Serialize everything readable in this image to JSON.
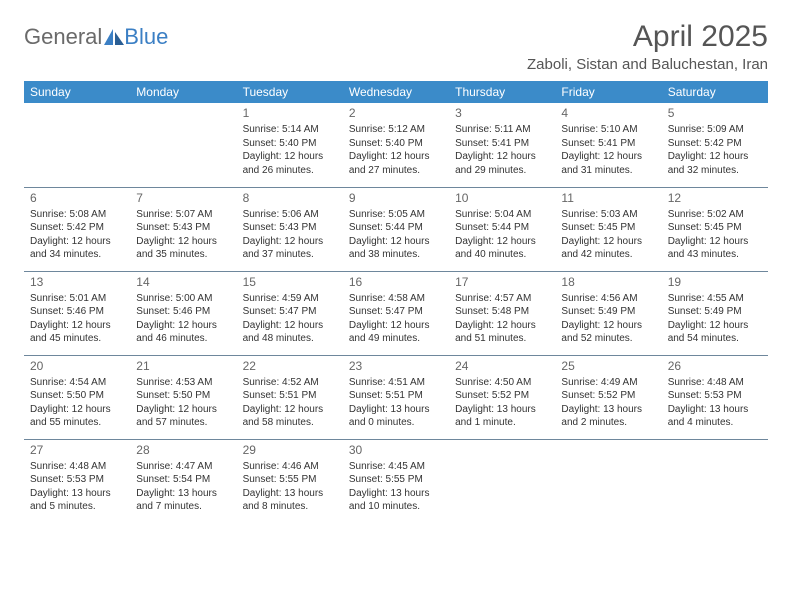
{
  "logo": {
    "general": "General",
    "blue": "Blue"
  },
  "title": "April 2025",
  "location": "Zaboli, Sistan and Baluchestan, Iran",
  "day_headers": [
    "Sunday",
    "Monday",
    "Tuesday",
    "Wednesday",
    "Thursday",
    "Friday",
    "Saturday"
  ],
  "colors": {
    "header_bg": "#3b8bc9",
    "header_text": "#ffffff",
    "border": "#6e879c",
    "logo_gray": "#6a6a6a",
    "logo_blue": "#3b7fc4",
    "title_color": "#555555",
    "cell_text": "#333333",
    "daynum_color": "#666666"
  },
  "typography": {
    "title_fontsize": 30,
    "location_fontsize": 15,
    "header_fontsize": 12,
    "daynum_fontsize": 12,
    "cell_fontsize": 10
  },
  "weeks": [
    [
      null,
      null,
      {
        "n": "1",
        "sunrise": "5:14 AM",
        "sunset": "5:40 PM",
        "daylight": "12 hours and 26 minutes."
      },
      {
        "n": "2",
        "sunrise": "5:12 AM",
        "sunset": "5:40 PM",
        "daylight": "12 hours and 27 minutes."
      },
      {
        "n": "3",
        "sunrise": "5:11 AM",
        "sunset": "5:41 PM",
        "daylight": "12 hours and 29 minutes."
      },
      {
        "n": "4",
        "sunrise": "5:10 AM",
        "sunset": "5:41 PM",
        "daylight": "12 hours and 31 minutes."
      },
      {
        "n": "5",
        "sunrise": "5:09 AM",
        "sunset": "5:42 PM",
        "daylight": "12 hours and 32 minutes."
      }
    ],
    [
      {
        "n": "6",
        "sunrise": "5:08 AM",
        "sunset": "5:42 PM",
        "daylight": "12 hours and 34 minutes."
      },
      {
        "n": "7",
        "sunrise": "5:07 AM",
        "sunset": "5:43 PM",
        "daylight": "12 hours and 35 minutes."
      },
      {
        "n": "8",
        "sunrise": "5:06 AM",
        "sunset": "5:43 PM",
        "daylight": "12 hours and 37 minutes."
      },
      {
        "n": "9",
        "sunrise": "5:05 AM",
        "sunset": "5:44 PM",
        "daylight": "12 hours and 38 minutes."
      },
      {
        "n": "10",
        "sunrise": "5:04 AM",
        "sunset": "5:44 PM",
        "daylight": "12 hours and 40 minutes."
      },
      {
        "n": "11",
        "sunrise": "5:03 AM",
        "sunset": "5:45 PM",
        "daylight": "12 hours and 42 minutes."
      },
      {
        "n": "12",
        "sunrise": "5:02 AM",
        "sunset": "5:45 PM",
        "daylight": "12 hours and 43 minutes."
      }
    ],
    [
      {
        "n": "13",
        "sunrise": "5:01 AM",
        "sunset": "5:46 PM",
        "daylight": "12 hours and 45 minutes."
      },
      {
        "n": "14",
        "sunrise": "5:00 AM",
        "sunset": "5:46 PM",
        "daylight": "12 hours and 46 minutes."
      },
      {
        "n": "15",
        "sunrise": "4:59 AM",
        "sunset": "5:47 PM",
        "daylight": "12 hours and 48 minutes."
      },
      {
        "n": "16",
        "sunrise": "4:58 AM",
        "sunset": "5:47 PM",
        "daylight": "12 hours and 49 minutes."
      },
      {
        "n": "17",
        "sunrise": "4:57 AM",
        "sunset": "5:48 PM",
        "daylight": "12 hours and 51 minutes."
      },
      {
        "n": "18",
        "sunrise": "4:56 AM",
        "sunset": "5:49 PM",
        "daylight": "12 hours and 52 minutes."
      },
      {
        "n": "19",
        "sunrise": "4:55 AM",
        "sunset": "5:49 PM",
        "daylight": "12 hours and 54 minutes."
      }
    ],
    [
      {
        "n": "20",
        "sunrise": "4:54 AM",
        "sunset": "5:50 PM",
        "daylight": "12 hours and 55 minutes."
      },
      {
        "n": "21",
        "sunrise": "4:53 AM",
        "sunset": "5:50 PM",
        "daylight": "12 hours and 57 minutes."
      },
      {
        "n": "22",
        "sunrise": "4:52 AM",
        "sunset": "5:51 PM",
        "daylight": "12 hours and 58 minutes."
      },
      {
        "n": "23",
        "sunrise": "4:51 AM",
        "sunset": "5:51 PM",
        "daylight": "13 hours and 0 minutes."
      },
      {
        "n": "24",
        "sunrise": "4:50 AM",
        "sunset": "5:52 PM",
        "daylight": "13 hours and 1 minute."
      },
      {
        "n": "25",
        "sunrise": "4:49 AM",
        "sunset": "5:52 PM",
        "daylight": "13 hours and 2 minutes."
      },
      {
        "n": "26",
        "sunrise": "4:48 AM",
        "sunset": "5:53 PM",
        "daylight": "13 hours and 4 minutes."
      }
    ],
    [
      {
        "n": "27",
        "sunrise": "4:48 AM",
        "sunset": "5:53 PM",
        "daylight": "13 hours and 5 minutes."
      },
      {
        "n": "28",
        "sunrise": "4:47 AM",
        "sunset": "5:54 PM",
        "daylight": "13 hours and 7 minutes."
      },
      {
        "n": "29",
        "sunrise": "4:46 AM",
        "sunset": "5:55 PM",
        "daylight": "13 hours and 8 minutes."
      },
      {
        "n": "30",
        "sunrise": "4:45 AM",
        "sunset": "5:55 PM",
        "daylight": "13 hours and 10 minutes."
      },
      null,
      null,
      null
    ]
  ],
  "labels": {
    "sunrise": "Sunrise: ",
    "sunset": "Sunset: ",
    "daylight": "Daylight: "
  }
}
